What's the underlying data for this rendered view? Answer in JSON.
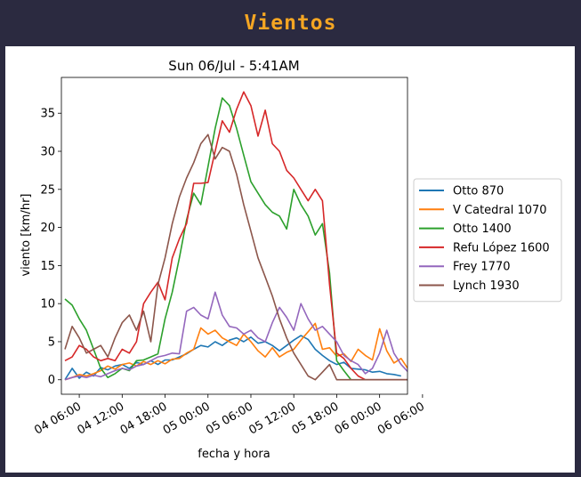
{
  "header": {
    "title": "Vientos"
  },
  "colors": {
    "header_bg": "#2b2a40",
    "title": "#f5a623",
    "panel": "#ffffff"
  },
  "chart_data": {
    "type": "line",
    "title": "Sun 06/Jul - 5:41AM",
    "xlabel": "fecha y hora",
    "ylabel": "viento [km/hr]",
    "xlim": [
      3.5,
      51.9
    ],
    "ylim": [
      -1.9,
      39.7
    ],
    "xticks": [
      {
        "v": 6,
        "label": "04 06:00"
      },
      {
        "v": 12,
        "label": "04 12:00"
      },
      {
        "v": 18,
        "label": "04 18:00"
      },
      {
        "v": 24,
        "label": "05 00:00"
      },
      {
        "v": 30,
        "label": "05 06:00"
      },
      {
        "v": 36,
        "label": "05 12:00"
      },
      {
        "v": 42,
        "label": "05 18:00"
      },
      {
        "v": 48,
        "label": "06 00:00"
      },
      {
        "v": 54,
        "label": "06 06:00"
      }
    ],
    "yticks": [
      0,
      5,
      10,
      15,
      20,
      25,
      30,
      35
    ],
    "legend_position": "right, outside plot area",
    "series": [
      {
        "name": "Otto 870",
        "color": "#1f77b4",
        "points": [
          [
            4,
            0
          ],
          [
            5,
            1.5
          ],
          [
            6,
            0.2
          ],
          [
            7,
            1
          ],
          [
            8,
            0.5
          ],
          [
            9,
            1.6
          ],
          [
            10,
            1.3
          ],
          [
            11,
            1.8
          ],
          [
            12,
            2
          ],
          [
            13,
            1.5
          ],
          [
            14,
            2.3
          ],
          [
            15,
            2
          ],
          [
            16,
            2.5
          ],
          [
            17,
            2
          ],
          [
            18,
            2.6
          ],
          [
            19,
            2.6
          ],
          [
            20,
            3
          ],
          [
            21,
            3.4
          ],
          [
            22,
            4
          ],
          [
            23,
            4.5
          ],
          [
            24,
            4.3
          ],
          [
            25,
            5
          ],
          [
            26,
            4.5
          ],
          [
            27,
            5.2
          ],
          [
            28,
            5.5
          ],
          [
            29,
            5
          ],
          [
            30,
            5.6
          ],
          [
            31,
            4.8
          ],
          [
            32,
            5
          ],
          [
            33,
            4.5
          ],
          [
            34,
            3.8
          ],
          [
            35,
            4.5
          ],
          [
            36,
            5.2
          ],
          [
            37,
            5.8
          ],
          [
            38,
            5.3
          ],
          [
            39,
            4
          ],
          [
            40,
            3.2
          ],
          [
            41,
            2.5
          ],
          [
            42,
            2
          ],
          [
            43,
            2.3
          ],
          [
            44,
            1.5
          ],
          [
            45,
            1.4
          ],
          [
            46,
            1.3
          ],
          [
            47,
            1
          ],
          [
            48,
            1.1
          ],
          [
            49,
            0.8
          ],
          [
            50,
            0.7
          ],
          [
            51,
            0.5
          ]
        ]
      },
      {
        "name": "V Catedral 1070",
        "color": "#ff7f0e",
        "points": [
          [
            4,
            0
          ],
          [
            5,
            0.3
          ],
          [
            6,
            0.7
          ],
          [
            7,
            0.5
          ],
          [
            8,
            0.8
          ],
          [
            9,
            1.2
          ],
          [
            10,
            1.8
          ],
          [
            11,
            1.4
          ],
          [
            12,
            2
          ],
          [
            13,
            2.2
          ],
          [
            14,
            1.8
          ],
          [
            15,
            2.4
          ],
          [
            16,
            2
          ],
          [
            17,
            2.5
          ],
          [
            18,
            2.1
          ],
          [
            19,
            2.7
          ],
          [
            20,
            2.8
          ],
          [
            21,
            3.5
          ],
          [
            22,
            4
          ],
          [
            23,
            6.8
          ],
          [
            24,
            6
          ],
          [
            25,
            6.5
          ],
          [
            26,
            5.5
          ],
          [
            27,
            5
          ],
          [
            28,
            4.5
          ],
          [
            29,
            6
          ],
          [
            30,
            5
          ],
          [
            31,
            3.8
          ],
          [
            32,
            3
          ],
          [
            33,
            4.2
          ],
          [
            34,
            3
          ],
          [
            35,
            3.6
          ],
          [
            36,
            4
          ],
          [
            37,
            5.2
          ],
          [
            38,
            6.3
          ],
          [
            39,
            7.4
          ],
          [
            40,
            4
          ],
          [
            41,
            4.2
          ],
          [
            42,
            3.1
          ],
          [
            43,
            3.4
          ],
          [
            44,
            2.4
          ],
          [
            45,
            4
          ],
          [
            46,
            3.2
          ],
          [
            47,
            2.6
          ],
          [
            48,
            6.7
          ],
          [
            49,
            3.8
          ],
          [
            50,
            2.2
          ],
          [
            51,
            2.8
          ],
          [
            52,
            1.4
          ],
          [
            53,
            2.8
          ],
          [
            54,
            1.5
          ],
          [
            55,
            1
          ]
        ]
      },
      {
        "name": "Otto 1400",
        "color": "#2ca02c",
        "points": [
          [
            4,
            10.6
          ],
          [
            5,
            9.8
          ],
          [
            6,
            8
          ],
          [
            7,
            6.5
          ],
          [
            8,
            4
          ],
          [
            9,
            1.5
          ],
          [
            10,
            0.3
          ],
          [
            11,
            0.8
          ],
          [
            12,
            1.5
          ],
          [
            13,
            1.2
          ],
          [
            14,
            2.5
          ],
          [
            15,
            2.6
          ],
          [
            16,
            3
          ],
          [
            17,
            3.4
          ],
          [
            18,
            8
          ],
          [
            19,
            11.5
          ],
          [
            20,
            16
          ],
          [
            21,
            21
          ],
          [
            22,
            24.5
          ],
          [
            23,
            23
          ],
          [
            24,
            28
          ],
          [
            25,
            33
          ],
          [
            26,
            37
          ],
          [
            27,
            36
          ],
          [
            28,
            33
          ],
          [
            29,
            29.5
          ],
          [
            30,
            26
          ],
          [
            31,
            24.5
          ],
          [
            32,
            23
          ],
          [
            33,
            22
          ],
          [
            34,
            21.5
          ],
          [
            35,
            19.8
          ],
          [
            36,
            25
          ],
          [
            37,
            23
          ],
          [
            38,
            21.5
          ],
          [
            39,
            19
          ],
          [
            40,
            20.5
          ],
          [
            41,
            14
          ],
          [
            42,
            2.5
          ],
          [
            43,
            1.2
          ],
          [
            44,
            0
          ]
        ]
      },
      {
        "name": "Refu López 1600",
        "color": "#d62728",
        "points": [
          [
            4,
            2.5
          ],
          [
            5,
            3
          ],
          [
            6,
            4.5
          ],
          [
            7,
            4
          ],
          [
            8,
            3
          ],
          [
            9,
            2.5
          ],
          [
            10,
            2.8
          ],
          [
            11,
            2.5
          ],
          [
            12,
            4
          ],
          [
            13,
            3.5
          ],
          [
            14,
            5
          ],
          [
            15,
            10
          ],
          [
            16,
            11.5
          ],
          [
            17,
            12.8
          ],
          [
            18,
            10.5
          ],
          [
            19,
            16
          ],
          [
            20,
            18.5
          ],
          [
            21,
            20.5
          ],
          [
            22,
            25.8
          ],
          [
            23,
            25.8
          ],
          [
            24,
            25.9
          ],
          [
            25,
            30
          ],
          [
            26,
            34
          ],
          [
            27,
            32.5
          ],
          [
            28,
            35.5
          ],
          [
            29,
            37.8
          ],
          [
            30,
            36
          ],
          [
            31,
            32
          ],
          [
            32,
            35.4
          ],
          [
            33,
            31
          ],
          [
            34,
            30
          ],
          [
            35,
            27.5
          ],
          [
            36,
            26.5
          ],
          [
            37,
            25
          ],
          [
            38,
            23.5
          ],
          [
            39,
            25
          ],
          [
            40,
            23.5
          ],
          [
            41,
            12.5
          ],
          [
            42,
            3.5
          ],
          [
            43,
            2.8
          ],
          [
            44,
            1.5
          ],
          [
            45,
            0.5
          ],
          [
            46,
            0
          ],
          [
            47,
            0
          ],
          [
            48,
            0
          ],
          [
            49,
            0
          ],
          [
            50,
            0
          ],
          [
            51,
            0
          ],
          [
            52,
            0
          ],
          [
            53,
            0
          ],
          [
            54,
            0
          ],
          [
            55,
            0
          ]
        ]
      },
      {
        "name": "Frey 1770",
        "color": "#9467bd",
        "points": [
          [
            4,
            0
          ],
          [
            5,
            0.3
          ],
          [
            6,
            0.5
          ],
          [
            7,
            0.3
          ],
          [
            8,
            0.6
          ],
          [
            9,
            0.4
          ],
          [
            10,
            0.8
          ],
          [
            11,
            1.2
          ],
          [
            12,
            1.5
          ],
          [
            13,
            1.3
          ],
          [
            14,
            1.8
          ],
          [
            15,
            2
          ],
          [
            16,
            2.5
          ],
          [
            17,
            3
          ],
          [
            18,
            3.2
          ],
          [
            19,
            3.5
          ],
          [
            20,
            3.4
          ],
          [
            21,
            9
          ],
          [
            22,
            9.5
          ],
          [
            23,
            8.5
          ],
          [
            24,
            8
          ],
          [
            25,
            11.5
          ],
          [
            26,
            8.5
          ],
          [
            27,
            7
          ],
          [
            28,
            6.8
          ],
          [
            29,
            6
          ],
          [
            30,
            6.5
          ],
          [
            31,
            5.5
          ],
          [
            32,
            5
          ],
          [
            33,
            7.5
          ],
          [
            34,
            9.5
          ],
          [
            35,
            8.2
          ],
          [
            36,
            6.5
          ],
          [
            37,
            10
          ],
          [
            38,
            8
          ],
          [
            39,
            6.5
          ],
          [
            40,
            7
          ],
          [
            41,
            6
          ],
          [
            42,
            5
          ],
          [
            43,
            3.2
          ],
          [
            44,
            2.5
          ],
          [
            45,
            2
          ],
          [
            46,
            0.8
          ],
          [
            47,
            1.5
          ],
          [
            48,
            3.5
          ],
          [
            49,
            6.5
          ],
          [
            50,
            3.5
          ],
          [
            51,
            2
          ],
          [
            52,
            1
          ],
          [
            53,
            0.8
          ],
          [
            54,
            0.5
          ],
          [
            55,
            0.4
          ]
        ]
      },
      {
        "name": "Lynch 1930",
        "color": "#8c564b",
        "points": [
          [
            4,
            4
          ],
          [
            5,
            7
          ],
          [
            6,
            5.5
          ],
          [
            7,
            3.5
          ],
          [
            8,
            4
          ],
          [
            9,
            4.5
          ],
          [
            10,
            3
          ],
          [
            11,
            5.5
          ],
          [
            12,
            7.5
          ],
          [
            13,
            8.5
          ],
          [
            14,
            6.5
          ],
          [
            15,
            9
          ],
          [
            16,
            5
          ],
          [
            17,
            12.5
          ],
          [
            18,
            16
          ],
          [
            19,
            20.5
          ],
          [
            20,
            24
          ],
          [
            21,
            26.5
          ],
          [
            22,
            28.5
          ],
          [
            23,
            31
          ],
          [
            24,
            32.2
          ],
          [
            25,
            29
          ],
          [
            26,
            30.5
          ],
          [
            27,
            30
          ],
          [
            28,
            27
          ],
          [
            29,
            23
          ],
          [
            30,
            19.5
          ],
          [
            31,
            16
          ],
          [
            32,
            13.5
          ],
          [
            33,
            11
          ],
          [
            34,
            8
          ],
          [
            35,
            5.5
          ],
          [
            36,
            3.5
          ],
          [
            37,
            2
          ],
          [
            38,
            0.5
          ],
          [
            39,
            0
          ],
          [
            40,
            1
          ],
          [
            41,
            2
          ],
          [
            42,
            0
          ],
          [
            43,
            0
          ],
          [
            44,
            0
          ],
          [
            45,
            0
          ],
          [
            46,
            0
          ],
          [
            47,
            0
          ],
          [
            48,
            0
          ],
          [
            49,
            0
          ],
          [
            50,
            0
          ],
          [
            51,
            0
          ],
          [
            52,
            0
          ],
          [
            53,
            0
          ],
          [
            54,
            0
          ],
          [
            55,
            0
          ]
        ]
      }
    ]
  }
}
